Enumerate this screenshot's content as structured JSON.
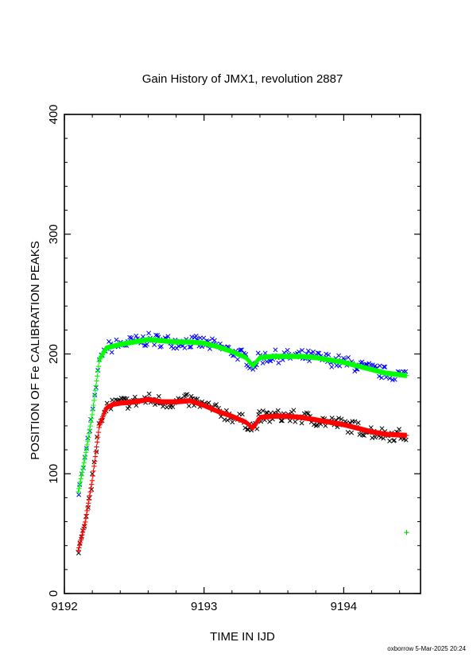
{
  "chart_data": {
    "type": "scatter",
    "title": "Gain History of JMX1, revolution 2887",
    "xlabel": "TIME IN IJD",
    "ylabel": "POSITION OF Fe CALIBRATION PEAKS",
    "xlim": [
      9192,
      9194.55
    ],
    "ylim": [
      0,
      400
    ],
    "x_ticks": [
      9192,
      9193,
      9194
    ],
    "y_ticks": [
      0,
      100,
      200,
      300,
      400
    ],
    "grid": false,
    "footer": "oxborrow  5-Mar-2025 20:24",
    "colors": {
      "upper_points": "#0000ff",
      "upper_fit": "#00ff00",
      "lower_points": "#000000",
      "lower_fit": "#ff0000",
      "outlier": "#00cc00"
    },
    "series": [
      {
        "role": "upper-fit",
        "x": [
          9192.1,
          9192.15,
          9192.2,
          9192.25,
          9192.3,
          9192.4,
          9192.5,
          9192.6,
          9192.7,
          9192.8,
          9192.9,
          9193.0,
          9193.1,
          9193.2,
          9193.3,
          9193.35,
          9193.4,
          9193.5,
          9193.6,
          9193.7,
          9193.8,
          9193.9,
          9194.0,
          9194.1,
          9194.2,
          9194.3,
          9194.45
        ],
        "y": [
          85,
          115,
          150,
          195,
          205,
          208,
          210,
          212,
          211,
          210,
          210,
          209,
          206,
          202,
          197,
          190,
          197,
          198,
          198,
          198,
          197,
          195,
          193,
          190,
          187,
          184,
          182
        ]
      },
      {
        "role": "lower-fit",
        "x": [
          9192.1,
          9192.15,
          9192.2,
          9192.25,
          9192.3,
          9192.35,
          9192.4,
          9192.5,
          9192.6,
          9192.7,
          9192.8,
          9192.9,
          9193.0,
          9193.1,
          9193.2,
          9193.3,
          9193.35,
          9193.4,
          9193.5,
          9193.6,
          9193.7,
          9193.8,
          9193.9,
          9194.0,
          9194.1,
          9194.2,
          9194.3,
          9194.45
        ],
        "y": [
          36,
          60,
          95,
          140,
          155,
          158,
          159,
          160,
          162,
          160,
          160,
          161,
          157,
          152,
          148,
          143,
          138,
          147,
          148,
          148,
          147,
          145,
          143,
          141,
          138,
          135,
          133,
          132
        ]
      },
      {
        "role": "outlier",
        "x": [
          9194.45
        ],
        "y": [
          51
        ]
      }
    ]
  }
}
